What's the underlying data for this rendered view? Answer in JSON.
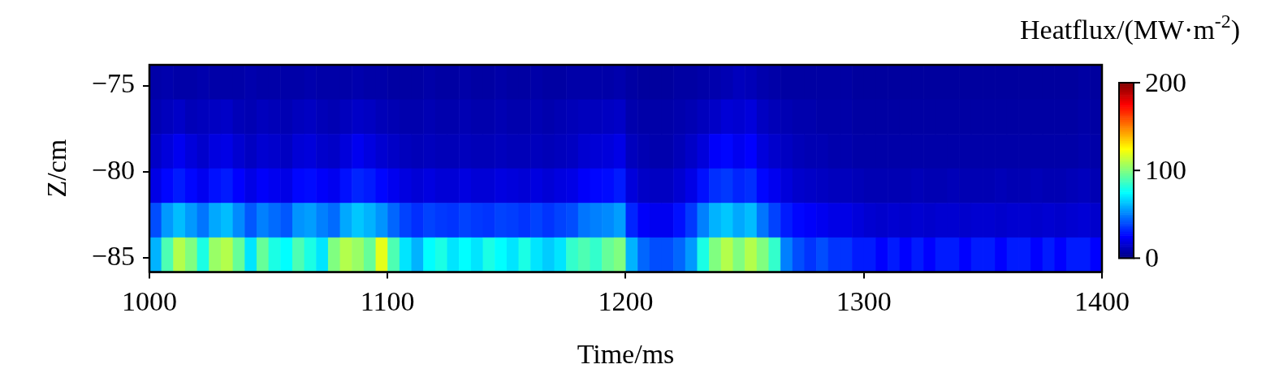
{
  "chart_data": {
    "type": "heatmap",
    "xlabel": "Time/ms",
    "ylabel": "Z/cm",
    "clabel": "Heatflux/(MW·m$^{-2}$)",
    "xlim": [
      1000,
      1400
    ],
    "xticks": [
      1000,
      1100,
      1200,
      1300,
      1400
    ],
    "ylim": [
      -85.8,
      -73.8
    ],
    "yticks": [
      {
        "value": -85,
        "label": "−85"
      },
      {
        "value": -80,
        "label": "−80"
      },
      {
        "value": -75,
        "label": "−75"
      }
    ],
    "clim": [
      0,
      200
    ],
    "cticks": [
      0,
      100,
      200
    ],
    "x": [
      1002.5,
      1007.5,
      1012.5,
      1017.5,
      1022.5,
      1027.5,
      1032.5,
      1037.5,
      1042.5,
      1047.5,
      1052.5,
      1057.5,
      1062.5,
      1067.5,
      1072.5,
      1077.5,
      1082.5,
      1087.5,
      1092.5,
      1097.5,
      1102.5,
      1107.5,
      1112.5,
      1117.5,
      1122.5,
      1127.5,
      1132.5,
      1137.5,
      1142.5,
      1147.5,
      1152.5,
      1157.5,
      1162.5,
      1167.5,
      1172.5,
      1177.5,
      1182.5,
      1187.5,
      1192.5,
      1197.5,
      1202.5,
      1207.5,
      1212.5,
      1217.5,
      1222.5,
      1227.5,
      1232.5,
      1237.5,
      1242.5,
      1247.5,
      1252.5,
      1257.5,
      1262.5,
      1267.5,
      1272.5,
      1277.5,
      1282.5,
      1287.5,
      1292.5,
      1297.5,
      1302.5,
      1307.5,
      1312.5,
      1317.5,
      1322.5,
      1327.5,
      1332.5,
      1337.5,
      1342.5,
      1347.5,
      1352.5,
      1357.5,
      1362.5,
      1367.5,
      1372.5,
      1377.5,
      1382.5,
      1387.5,
      1392.5,
      1397.5
    ],
    "y": [
      -74.8,
      -76.8,
      -78.8,
      -80.8,
      -82.8,
      -84.8
    ],
    "cells": [
      [
        8,
        9,
        8,
        8,
        9,
        8,
        8,
        8,
        9,
        8,
        8,
        8,
        8,
        9,
        8,
        8,
        8,
        9,
        8,
        8,
        7,
        7,
        7,
        8,
        7,
        7,
        8,
        7,
        7,
        8,
        7,
        7,
        8,
        7,
        7,
        8,
        8,
        8,
        8,
        9,
        7,
        6,
        6,
        6,
        7,
        7,
        8,
        9,
        10,
        12,
        11,
        9,
        8,
        7,
        7,
        7,
        7,
        7,
        7,
        6,
        6,
        6,
        6,
        6,
        6,
        6,
        6,
        6,
        6,
        6,
        6,
        6,
        6,
        6,
        6,
        6,
        6,
        6,
        7,
        6
      ],
      [
        10,
        12,
        14,
        11,
        12,
        13,
        14,
        11,
        10,
        12,
        11,
        10,
        12,
        13,
        11,
        10,
        12,
        14,
        13,
        11,
        10,
        9,
        9,
        10,
        9,
        9,
        10,
        9,
        9,
        10,
        9,
        9,
        10,
        9,
        10,
        11,
        12,
        12,
        13,
        14,
        9,
        8,
        8,
        8,
        9,
        10,
        12,
        14,
        17,
        16,
        18,
        13,
        11,
        10,
        9,
        9,
        8,
        8,
        8,
        7,
        7,
        7,
        7,
        7,
        7,
        7,
        7,
        7,
        7,
        7,
        7,
        7,
        7,
        7,
        7,
        7,
        7,
        7,
        8,
        7
      ],
      [
        14,
        18,
        22,
        18,
        15,
        19,
        20,
        16,
        13,
        16,
        15,
        13,
        17,
        18,
        15,
        14,
        18,
        22,
        19,
        16,
        14,
        12,
        11,
        12,
        11,
        11,
        12,
        11,
        11,
        12,
        11,
        11,
        12,
        11,
        12,
        13,
        16,
        17,
        18,
        20,
        12,
        10,
        9,
        9,
        11,
        14,
        18,
        24,
        26,
        22,
        25,
        18,
        15,
        13,
        11,
        10,
        10,
        9,
        9,
        8,
        8,
        8,
        8,
        8,
        8,
        8,
        8,
        8,
        8,
        8,
        8,
        8,
        8,
        8,
        8,
        8,
        8,
        8,
        9,
        8
      ],
      [
        20,
        26,
        30,
        26,
        22,
        28,
        30,
        25,
        20,
        24,
        22,
        20,
        26,
        27,
        24,
        22,
        28,
        32,
        30,
        26,
        22,
        19,
        17,
        19,
        17,
        17,
        19,
        17,
        17,
        19,
        18,
        17,
        19,
        17,
        19,
        20,
        24,
        26,
        27,
        30,
        18,
        14,
        13,
        13,
        16,
        20,
        28,
        34,
        36,
        32,
        34,
        26,
        22,
        18,
        15,
        14,
        13,
        12,
        12,
        11,
        10,
        10,
        10,
        10,
        11,
        10,
        10,
        11,
        10,
        10,
        10,
        11,
        10,
        10,
        11,
        10,
        10,
        11,
        12,
        10
      ],
      [
        40,
        55,
        62,
        55,
        48,
        58,
        62,
        52,
        42,
        50,
        46,
        42,
        54,
        56,
        50,
        46,
        58,
        64,
        60,
        54,
        45,
        38,
        34,
        38,
        36,
        35,
        38,
        36,
        35,
        38,
        37,
        35,
        38,
        35,
        38,
        40,
        48,
        50,
        52,
        56,
        32,
        24,
        22,
        22,
        28,
        36,
        50,
        60,
        64,
        58,
        62,
        48,
        38,
        30,
        26,
        24,
        22,
        20,
        20,
        18,
        16,
        15,
        16,
        15,
        16,
        15,
        16,
        16,
        15,
        16,
        16,
        15,
        16,
        16,
        15,
        16,
        15,
        16,
        17,
        15
      ],
      [
        60,
        90,
        110,
        100,
        80,
        105,
        110,
        95,
        70,
        95,
        80,
        75,
        90,
        80,
        70,
        100,
        110,
        105,
        95,
        120,
        90,
        70,
        60,
        75,
        80,
        70,
        75,
        70,
        80,
        75,
        70,
        80,
        70,
        65,
        70,
        85,
        90,
        85,
        95,
        100,
        60,
        45,
        40,
        40,
        45,
        55,
        80,
        100,
        110,
        100,
        110,
        100,
        85,
        50,
        40,
        35,
        40,
        35,
        35,
        30,
        30,
        25,
        30,
        25,
        30,
        25,
        30,
        30,
        25,
        30,
        30,
        25,
        30,
        30,
        25,
        30,
        25,
        30,
        30,
        25
      ]
    ]
  }
}
